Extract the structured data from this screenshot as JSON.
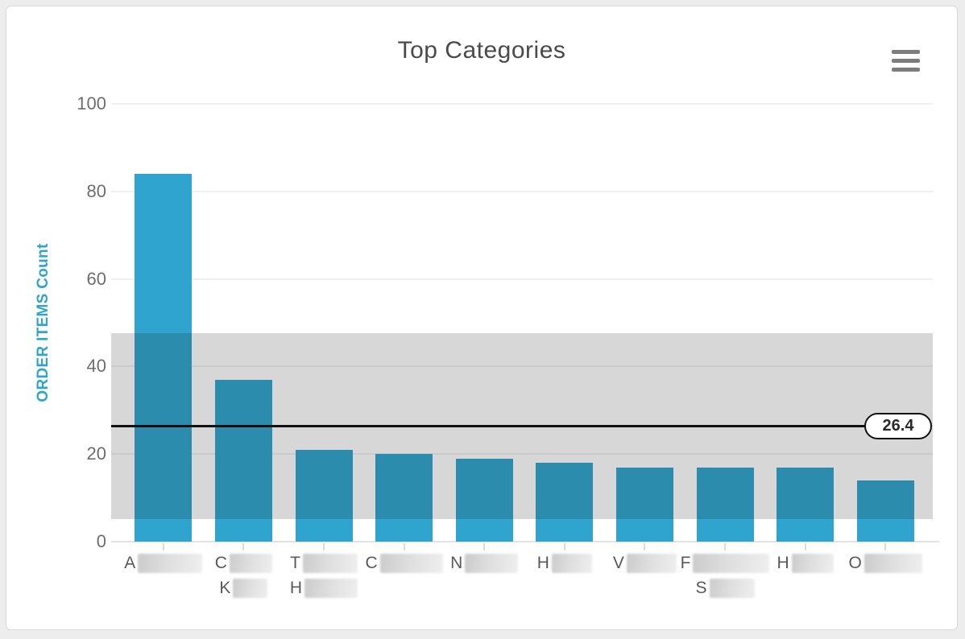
{
  "page": {
    "background_color": "#ededed",
    "card_background": "#ffffff",
    "card_border_color": "#d9d9d9"
  },
  "header": {
    "title": "Top Categories",
    "menu_icon": "hamburger-icon"
  },
  "chart_data": {
    "type": "bar",
    "title": "Top Categories",
    "xlabel": "",
    "ylabel": "ORDER ITEMS Count",
    "ylim": [
      0,
      100
    ],
    "yticks": [
      0,
      20,
      40,
      60,
      80,
      100
    ],
    "grid": true,
    "legend_position": "none",
    "bar_color": "#2ea4ce",
    "axis_title_color": "#2ea4ce",
    "tick_label_color": "#6e6e6e",
    "values": [
      84,
      37,
      21,
      20,
      19,
      18,
      17,
      17,
      17,
      14
    ],
    "categories": [
      {
        "lines": [
          {
            "letter": "A",
            "redacted_width": 80
          }
        ]
      },
      {
        "lines": [
          {
            "letter": "C",
            "redacted_width": 53
          },
          {
            "letter": "K",
            "redacted_width": 43
          }
        ]
      },
      {
        "lines": [
          {
            "letter": "T",
            "redacted_width": 68
          },
          {
            "letter": "H",
            "redacted_width": 66
          }
        ]
      },
      {
        "lines": [
          {
            "letter": "C",
            "redacted_width": 78
          }
        ]
      },
      {
        "lines": [
          {
            "letter": "N",
            "redacted_width": 66
          }
        ]
      },
      {
        "lines": [
          {
            "letter": "H",
            "redacted_width": 50
          }
        ]
      },
      {
        "lines": [
          {
            "letter": "V",
            "redacted_width": 62
          }
        ]
      },
      {
        "lines": [
          {
            "letter": "F",
            "redacted_width": 95
          },
          {
            "letter": "S",
            "redacted_width": 56
          }
        ]
      },
      {
        "lines": [
          {
            "letter": "H",
            "redacted_width": 52
          }
        ]
      },
      {
        "lines": [
          {
            "letter": "O",
            "redacted_width": 72
          }
        ]
      }
    ],
    "average_line": {
      "value": 26.4,
      "label": "26.4",
      "color": "#111111"
    },
    "std_band": {
      "from": 5.2,
      "to": 47.6,
      "overlay_color": "rgba(33,33,33,0.18)"
    }
  }
}
